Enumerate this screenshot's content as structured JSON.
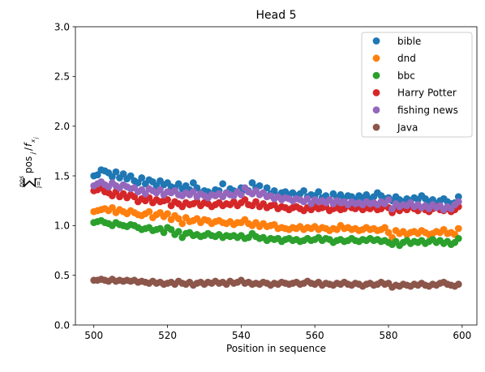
{
  "chart_data": {
    "type": "scatter",
    "title": "Head 5",
    "xlabel": "Position in sequence",
    "ylabel": "∑ pos / f",
    "xlim": [
      495,
      604
    ],
    "ylim": [
      0.0,
      3.0
    ],
    "xticks": [
      500,
      520,
      540,
      560,
      580,
      600
    ],
    "yticks": [
      0.0,
      0.5,
      1.0,
      1.5,
      2.0,
      2.5,
      3.0
    ],
    "ytick_labels": [
      "0.0",
      "0.5",
      "1.0",
      "1.5",
      "2.0",
      "2.5",
      "3.0"
    ],
    "grid": false,
    "legend_position": "top-right",
    "x": [
      500,
      501,
      502,
      503,
      504,
      505,
      506,
      507,
      508,
      509,
      510,
      511,
      512,
      513,
      514,
      515,
      516,
      517,
      518,
      519,
      520,
      521,
      522,
      523,
      524,
      525,
      526,
      527,
      528,
      529,
      530,
      531,
      532,
      533,
      534,
      535,
      536,
      537,
      538,
      539,
      540,
      541,
      542,
      543,
      544,
      545,
      546,
      547,
      548,
      549,
      550,
      551,
      552,
      553,
      554,
      555,
      556,
      557,
      558,
      559,
      560,
      561,
      562,
      563,
      564,
      565,
      566,
      567,
      568,
      569,
      570,
      571,
      572,
      573,
      574,
      575,
      576,
      577,
      578,
      579,
      580,
      581,
      582,
      583,
      584,
      585,
      586,
      587,
      588,
      589,
      590,
      591,
      592,
      593,
      594,
      595,
      596,
      597,
      598,
      599
    ],
    "series": [
      {
        "name": "bible",
        "color": "#1f77b4",
        "values": [
          1.5,
          1.51,
          1.56,
          1.55,
          1.53,
          1.49,
          1.54,
          1.48,
          1.52,
          1.47,
          1.5,
          1.45,
          1.43,
          1.48,
          1.42,
          1.46,
          1.44,
          1.4,
          1.45,
          1.41,
          1.43,
          1.39,
          1.38,
          1.42,
          1.37,
          1.4,
          1.36,
          1.43,
          1.38,
          1.33,
          1.35,
          1.34,
          1.32,
          1.36,
          1.35,
          1.42,
          1.33,
          1.37,
          1.35,
          1.34,
          1.38,
          1.36,
          1.35,
          1.43,
          1.38,
          1.4,
          1.33,
          1.38,
          1.32,
          1.35,
          1.3,
          1.33,
          1.34,
          1.31,
          1.33,
          1.3,
          1.32,
          1.35,
          1.29,
          1.31,
          1.3,
          1.34,
          1.28,
          1.3,
          1.26,
          1.32,
          1.28,
          1.31,
          1.27,
          1.3,
          1.29,
          1.26,
          1.3,
          1.28,
          1.31,
          1.27,
          1.29,
          1.33,
          1.3,
          1.27,
          1.28,
          1.25,
          1.29,
          1.26,
          1.24,
          1.27,
          1.25,
          1.28,
          1.26,
          1.3,
          1.27,
          1.24,
          1.26,
          1.22,
          1.25,
          1.27,
          1.24,
          1.22,
          1.23,
          1.29
        ]
      },
      {
        "name": "dnd",
        "color": "#ff7f0e",
        "values": [
          1.14,
          1.15,
          1.16,
          1.17,
          1.15,
          1.18,
          1.13,
          1.16,
          1.14,
          1.12,
          1.15,
          1.13,
          1.11,
          1.1,
          1.12,
          1.14,
          1.08,
          1.11,
          1.13,
          1.09,
          1.12,
          1.06,
          1.1,
          1.07,
          1.02,
          1.08,
          1.04,
          1.05,
          1.07,
          1.03,
          1.06,
          1.05,
          1.02,
          1.04,
          1.05,
          1.03,
          1.02,
          1.04,
          1.01,
          1.03,
          1.03,
          1.06,
          1.02,
          1.0,
          1.03,
          0.99,
          1.02,
          0.99,
          1.0,
          1.01,
          0.97,
          0.98,
          0.97,
          0.96,
          0.98,
          0.97,
          0.99,
          0.96,
          0.98,
          0.97,
          0.99,
          0.96,
          0.98,
          0.97,
          0.95,
          0.97,
          0.96,
          1.0,
          0.97,
          0.98,
          0.96,
          0.97,
          0.95,
          0.96,
          0.98,
          0.96,
          0.97,
          0.95,
          0.96,
          0.98,
          0.93,
          0.88,
          0.95,
          0.92,
          0.94,
          0.91,
          0.93,
          0.94,
          0.92,
          0.95,
          0.93,
          0.91,
          0.92,
          0.94,
          0.93,
          0.96,
          0.92,
          0.93,
          0.91,
          0.97
        ]
      },
      {
        "name": "bbc",
        "color": "#2ca02c",
        "values": [
          1.03,
          1.04,
          1.05,
          1.03,
          1.02,
          1.0,
          1.03,
          1.01,
          1.0,
          0.99,
          1.01,
          1.0,
          0.98,
          0.96,
          0.97,
          0.98,
          0.95,
          0.96,
          0.97,
          0.93,
          0.98,
          0.96,
          0.91,
          0.94,
          0.88,
          0.92,
          0.93,
          0.9,
          0.91,
          0.89,
          0.9,
          0.92,
          0.9,
          0.89,
          0.91,
          0.88,
          0.9,
          0.89,
          0.9,
          0.88,
          0.9,
          0.87,
          0.88,
          0.92,
          0.89,
          0.87,
          0.88,
          0.85,
          0.87,
          0.86,
          0.87,
          0.84,
          0.86,
          0.87,
          0.85,
          0.86,
          0.84,
          0.85,
          0.87,
          0.85,
          0.86,
          0.88,
          0.85,
          0.87,
          0.86,
          0.83,
          0.85,
          0.86,
          0.84,
          0.85,
          0.87,
          0.85,
          0.84,
          0.86,
          0.85,
          0.87,
          0.85,
          0.86,
          0.84,
          0.85,
          0.83,
          0.81,
          0.84,
          0.8,
          0.83,
          0.85,
          0.82,
          0.84,
          0.83,
          0.85,
          0.82,
          0.84,
          0.86,
          0.83,
          0.85,
          0.82,
          0.84,
          0.81,
          0.83,
          0.87
        ]
      },
      {
        "name": "Harry Potter",
        "color": "#d62728",
        "values": [
          1.35,
          1.36,
          1.38,
          1.34,
          1.33,
          1.3,
          1.34,
          1.29,
          1.32,
          1.28,
          1.31,
          1.29,
          1.24,
          1.27,
          1.25,
          1.28,
          1.23,
          1.26,
          1.24,
          1.25,
          1.26,
          1.2,
          1.24,
          1.22,
          1.19,
          1.23,
          1.21,
          1.22,
          1.24,
          1.2,
          1.23,
          1.22,
          1.19,
          1.21,
          1.23,
          1.2,
          1.22,
          1.21,
          1.24,
          1.2,
          1.23,
          1.26,
          1.21,
          1.2,
          1.24,
          1.19,
          1.22,
          1.18,
          1.2,
          1.21,
          1.17,
          1.19,
          1.18,
          1.16,
          1.18,
          1.19,
          1.17,
          1.15,
          1.18,
          1.16,
          1.19,
          1.17,
          1.18,
          1.19,
          1.15,
          1.17,
          1.18,
          1.16,
          1.17,
          1.2,
          1.18,
          1.17,
          1.19,
          1.16,
          1.18,
          1.17,
          1.19,
          1.16,
          1.17,
          1.2,
          1.18,
          1.13,
          1.17,
          1.15,
          1.18,
          1.16,
          1.19,
          1.17,
          1.15,
          1.18,
          1.16,
          1.14,
          1.17,
          1.19,
          1.16,
          1.15,
          1.17,
          1.14,
          1.16,
          1.19
        ]
      },
      {
        "name": "fishing news",
        "color": "#9467bd",
        "values": [
          1.4,
          1.42,
          1.44,
          1.41,
          1.39,
          1.43,
          1.4,
          1.38,
          1.41,
          1.39,
          1.37,
          1.38,
          1.34,
          1.36,
          1.32,
          1.37,
          1.35,
          1.33,
          1.36,
          1.31,
          1.34,
          1.33,
          1.35,
          1.31,
          1.3,
          1.33,
          1.31,
          1.34,
          1.29,
          1.32,
          1.3,
          1.28,
          1.31,
          1.3,
          1.32,
          1.29,
          1.33,
          1.31,
          1.3,
          1.34,
          1.31,
          1.38,
          1.34,
          1.32,
          1.35,
          1.31,
          1.33,
          1.29,
          1.3,
          1.27,
          1.29,
          1.26,
          1.28,
          1.27,
          1.25,
          1.27,
          1.26,
          1.24,
          1.27,
          1.22,
          1.26,
          1.24,
          1.25,
          1.23,
          1.26,
          1.22,
          1.25,
          1.23,
          1.24,
          1.21,
          1.24,
          1.22,
          1.23,
          1.21,
          1.24,
          1.22,
          1.23,
          1.21,
          1.24,
          1.22,
          1.26,
          1.17,
          1.22,
          1.19,
          1.21,
          1.2,
          1.23,
          1.19,
          1.21,
          1.18,
          1.2,
          1.17,
          1.21,
          1.18,
          1.2,
          1.16,
          1.19,
          1.17,
          1.21,
          1.24
        ]
      },
      {
        "name": "Java",
        "color": "#8c564b",
        "values": [
          0.45,
          0.45,
          0.46,
          0.45,
          0.44,
          0.46,
          0.44,
          0.45,
          0.44,
          0.45,
          0.44,
          0.45,
          0.43,
          0.44,
          0.43,
          0.42,
          0.44,
          0.42,
          0.43,
          0.41,
          0.42,
          0.43,
          0.41,
          0.44,
          0.42,
          0.41,
          0.43,
          0.4,
          0.42,
          0.43,
          0.41,
          0.43,
          0.42,
          0.44,
          0.42,
          0.43,
          0.41,
          0.44,
          0.42,
          0.43,
          0.45,
          0.42,
          0.43,
          0.41,
          0.42,
          0.41,
          0.43,
          0.42,
          0.4,
          0.42,
          0.41,
          0.43,
          0.42,
          0.41,
          0.42,
          0.43,
          0.41,
          0.42,
          0.44,
          0.42,
          0.41,
          0.43,
          0.4,
          0.42,
          0.41,
          0.4,
          0.42,
          0.41,
          0.43,
          0.41,
          0.4,
          0.42,
          0.41,
          0.39,
          0.41,
          0.42,
          0.4,
          0.41,
          0.43,
          0.41,
          0.42,
          0.38,
          0.4,
          0.39,
          0.41,
          0.4,
          0.39,
          0.41,
          0.4,
          0.42,
          0.4,
          0.39,
          0.41,
          0.4,
          0.42,
          0.43,
          0.41,
          0.4,
          0.39,
          0.41
        ]
      }
    ]
  }
}
